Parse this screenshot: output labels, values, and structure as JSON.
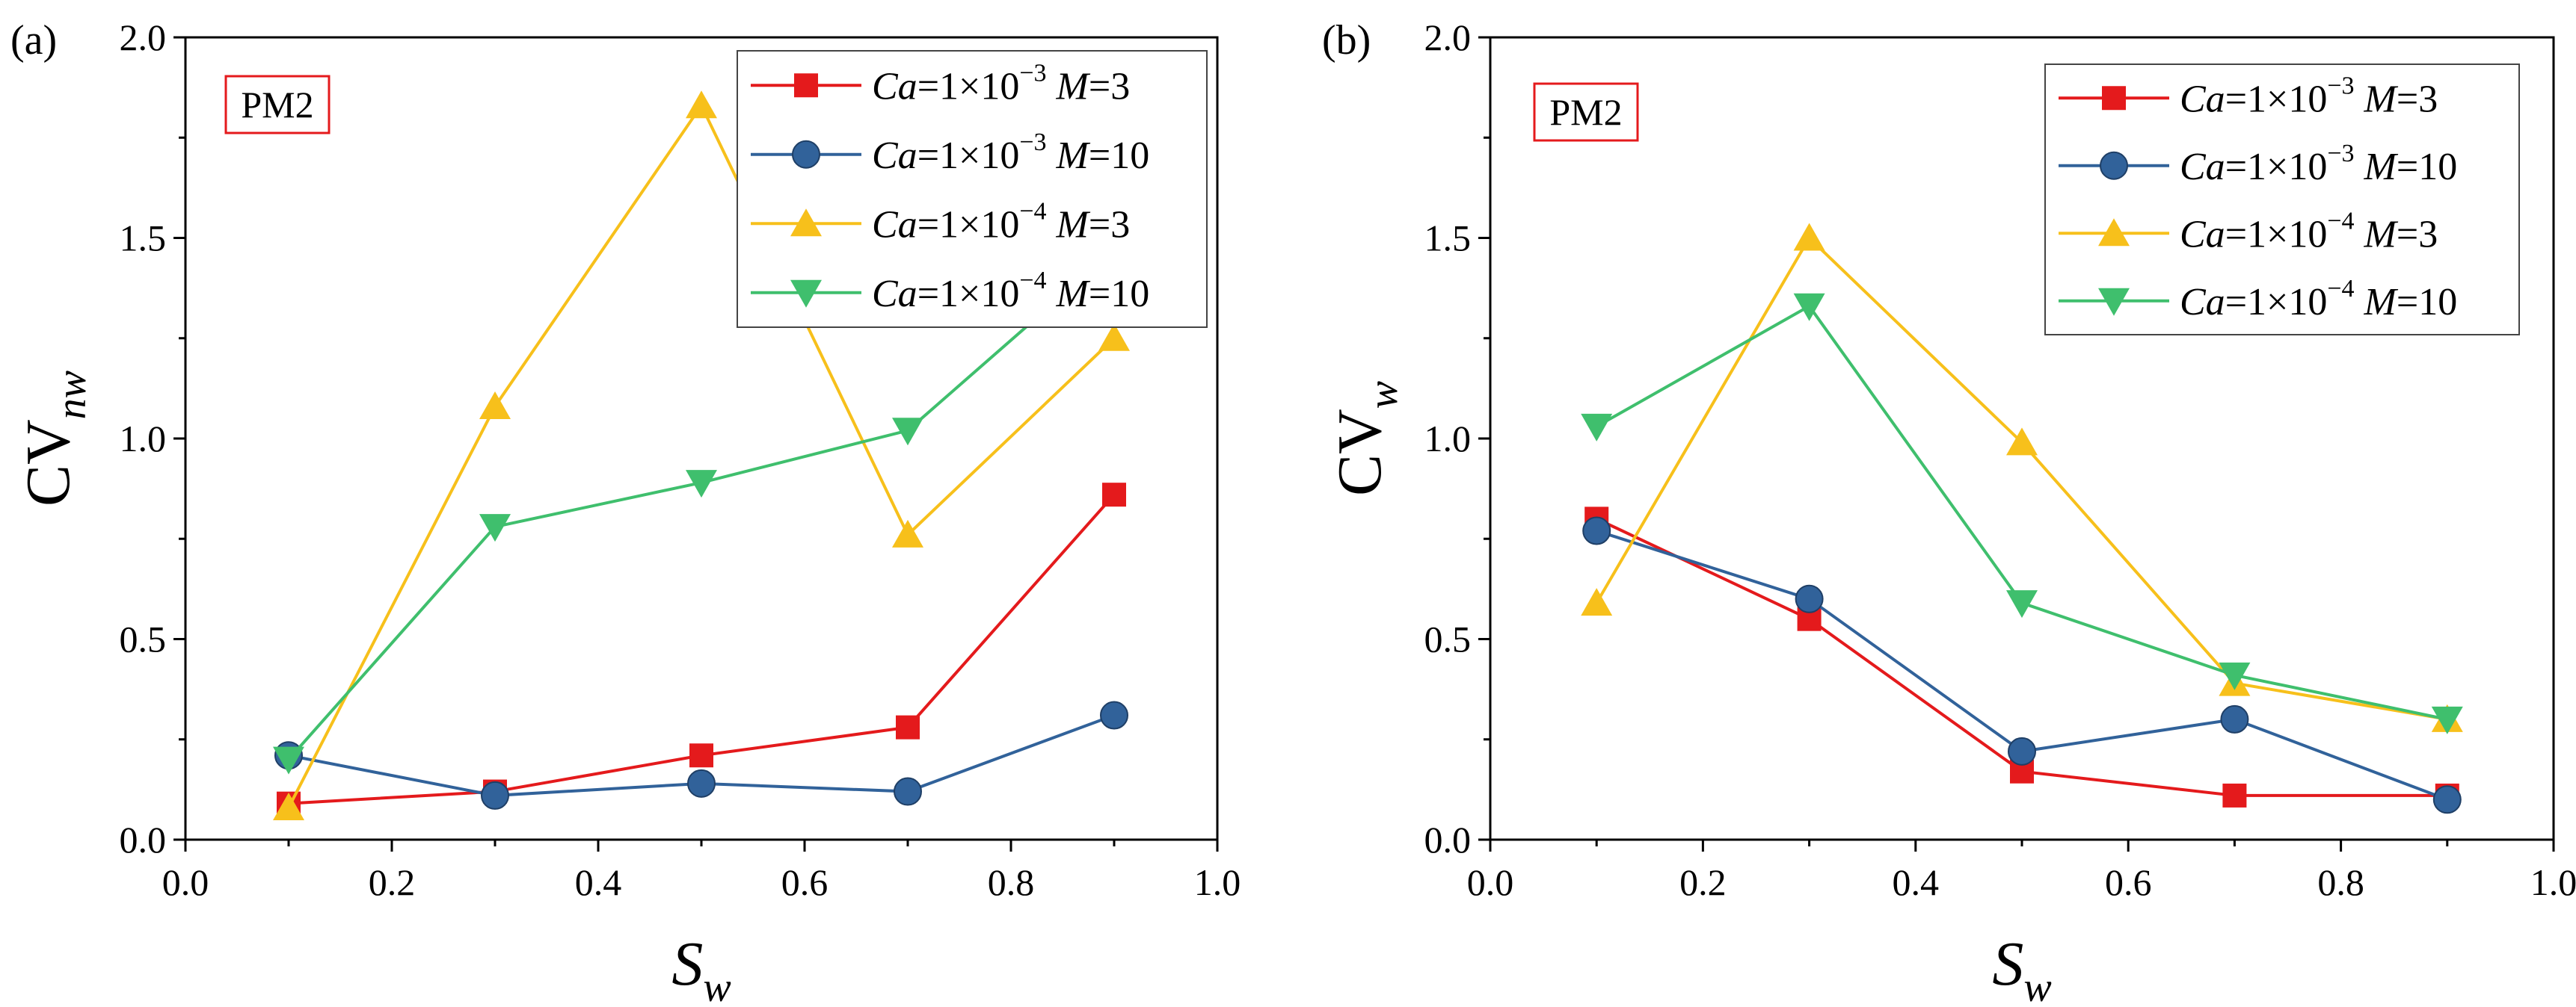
{
  "chart_data": [
    {
      "panel_label": "(a)",
      "type": "line",
      "badge": "PM2",
      "xlabel": "S",
      "xlabel_sub": "w",
      "ylabel": "CV",
      "ylabel_sub": "nw",
      "xlim": [
        0.0,
        1.0
      ],
      "ylim": [
        0.0,
        2.0
      ],
      "x_ticks": [
        "0.0",
        "0.2",
        "0.4",
        "0.6",
        "0.8",
        "1.0"
      ],
      "y_ticks": [
        "0.0",
        "0.5",
        "1.0",
        "1.5",
        "2.0"
      ],
      "x": [
        0.1,
        0.3,
        0.5,
        0.7,
        0.9
      ],
      "legend_position": "top-right",
      "series": [
        {
          "ca_exp": "−3",
          "m": "3",
          "color": "#e41a1c",
          "marker": "square",
          "values": [
            0.09,
            0.12,
            0.21,
            0.28,
            0.86
          ]
        },
        {
          "ca_exp": "−3",
          "m": "10",
          "color": "#31629a",
          "marker": "circle",
          "values": [
            0.21,
            0.11,
            0.14,
            0.12,
            0.31
          ]
        },
        {
          "ca_exp": "−4",
          "m": "3",
          "color": "#f7c01b",
          "marker": "triangle-up",
          "values": [
            0.08,
            1.08,
            1.83,
            0.76,
            1.25
          ]
        },
        {
          "ca_exp": "−4",
          "m": "10",
          "color": "#3fbf6d",
          "marker": "triangle-down",
          "values": [
            0.2,
            0.78,
            0.89,
            1.02,
            1.47
          ]
        }
      ]
    },
    {
      "panel_label": "(b)",
      "type": "line",
      "badge": "PM2",
      "xlabel": "S",
      "xlabel_sub": "w",
      "ylabel": "CV",
      "ylabel_sub": "w",
      "xlim": [
        0.0,
        1.0
      ],
      "ylim": [
        0.0,
        2.0
      ],
      "x_ticks": [
        "0.0",
        "0.2",
        "0.4",
        "0.6",
        "0.8",
        "1.0"
      ],
      "y_ticks": [
        "0.0",
        "0.5",
        "1.0",
        "1.5",
        "2.0"
      ],
      "x": [
        0.1,
        0.3,
        0.5,
        0.7,
        0.9
      ],
      "legend_position": "top-right",
      "series": [
        {
          "ca_exp": "−3",
          "m": "3",
          "color": "#e41a1c",
          "marker": "square",
          "values": [
            0.8,
            0.55,
            0.17,
            0.11,
            0.11
          ]
        },
        {
          "ca_exp": "−3",
          "m": "10",
          "color": "#31629a",
          "marker": "circle",
          "values": [
            0.77,
            0.6,
            0.22,
            0.3,
            0.1
          ]
        },
        {
          "ca_exp": "−4",
          "m": "3",
          "color": "#f7c01b",
          "marker": "triangle-up",
          "values": [
            0.59,
            1.5,
            0.99,
            0.39,
            0.3
          ]
        },
        {
          "ca_exp": "−4",
          "m": "10",
          "color": "#3fbf6d",
          "marker": "triangle-down",
          "values": [
            1.03,
            1.33,
            0.59,
            0.41,
            0.3
          ]
        }
      ]
    }
  ],
  "legend_template": {
    "ca_symbol": "Ca",
    "ca_mid": "=1×10",
    "m_symbol": "M",
    "eq": "="
  }
}
